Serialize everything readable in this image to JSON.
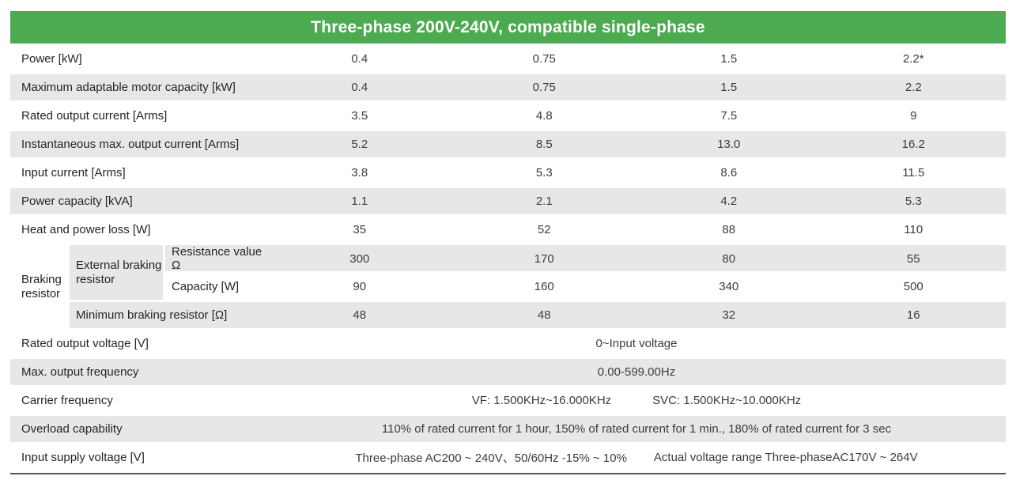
{
  "title": "Three-phase 200V-240V, compatible single-phase",
  "colors": {
    "header_bg": "#4cab50",
    "header_text": "#ffffff",
    "row_shade": "#e7e7e7",
    "bottom_border": "#555555"
  },
  "spec_rows": [
    {
      "label": "Power [kW]",
      "values": [
        "0.4",
        "0.75",
        "1.5",
        "2.2*"
      ]
    },
    {
      "label": "Maximum adaptable motor capacity [kW]",
      "values": [
        "0.4",
        "0.75",
        "1.5",
        "2.2"
      ]
    },
    {
      "label": "Rated output current [Arms]",
      "values": [
        "3.5",
        "4.8",
        "7.5",
        "9"
      ]
    },
    {
      "label": "Instantaneous max. output current [Arms]",
      "values": [
        "5.2",
        "8.5",
        "13.0",
        "16.2"
      ]
    },
    {
      "label": "Input current [Arms]",
      "values": [
        "3.8",
        "5.3",
        "8.6",
        "11.5"
      ]
    },
    {
      "label": "Power capacity [kVA]",
      "values": [
        "1.1",
        "2.1",
        "4.2",
        "5.3"
      ]
    },
    {
      "label": "Heat and power loss [W]",
      "values": [
        "35",
        "52",
        "88",
        "110"
      ]
    }
  ],
  "braking": {
    "group_label": "Braking resistor",
    "external_label": "External braking resistor",
    "resistance": {
      "label": "Resistance value Ω",
      "values": [
        "300",
        "170",
        "80",
        "55"
      ]
    },
    "capacity": {
      "label": "Capacity [W]",
      "values": [
        "90",
        "160",
        "340",
        "500"
      ]
    },
    "minimum": {
      "label": "Minimum braking resistor [Ω]",
      "values": [
        "48",
        "48",
        "32",
        "16"
      ]
    }
  },
  "span_rows": {
    "rated_output_voltage": {
      "label": "Rated output voltage [V]",
      "value": "0~Input voltage"
    },
    "max_output_frequency": {
      "label": "Max. output frequency",
      "value": "0.00-599.00Hz"
    },
    "carrier_frequency": {
      "label": "Carrier frequency",
      "value_vf": "VF: 1.500KHz~16.000KHz",
      "value_svc": "SVC: 1.500KHz~10.000KHz"
    },
    "overload_capability": {
      "label": "Overload capability",
      "value": "110% of rated current for 1 hour, 150% of rated current for 1 min., 180% of rated current for 3 sec"
    },
    "input_supply_voltage": {
      "label": "Input supply voltage [V]",
      "value_range": "Three-phase AC200 ~ 240V、50/60Hz -15% ~ 10%",
      "value_actual": "Actual voltage range Three-phaseAC170V ~ 264V"
    }
  }
}
